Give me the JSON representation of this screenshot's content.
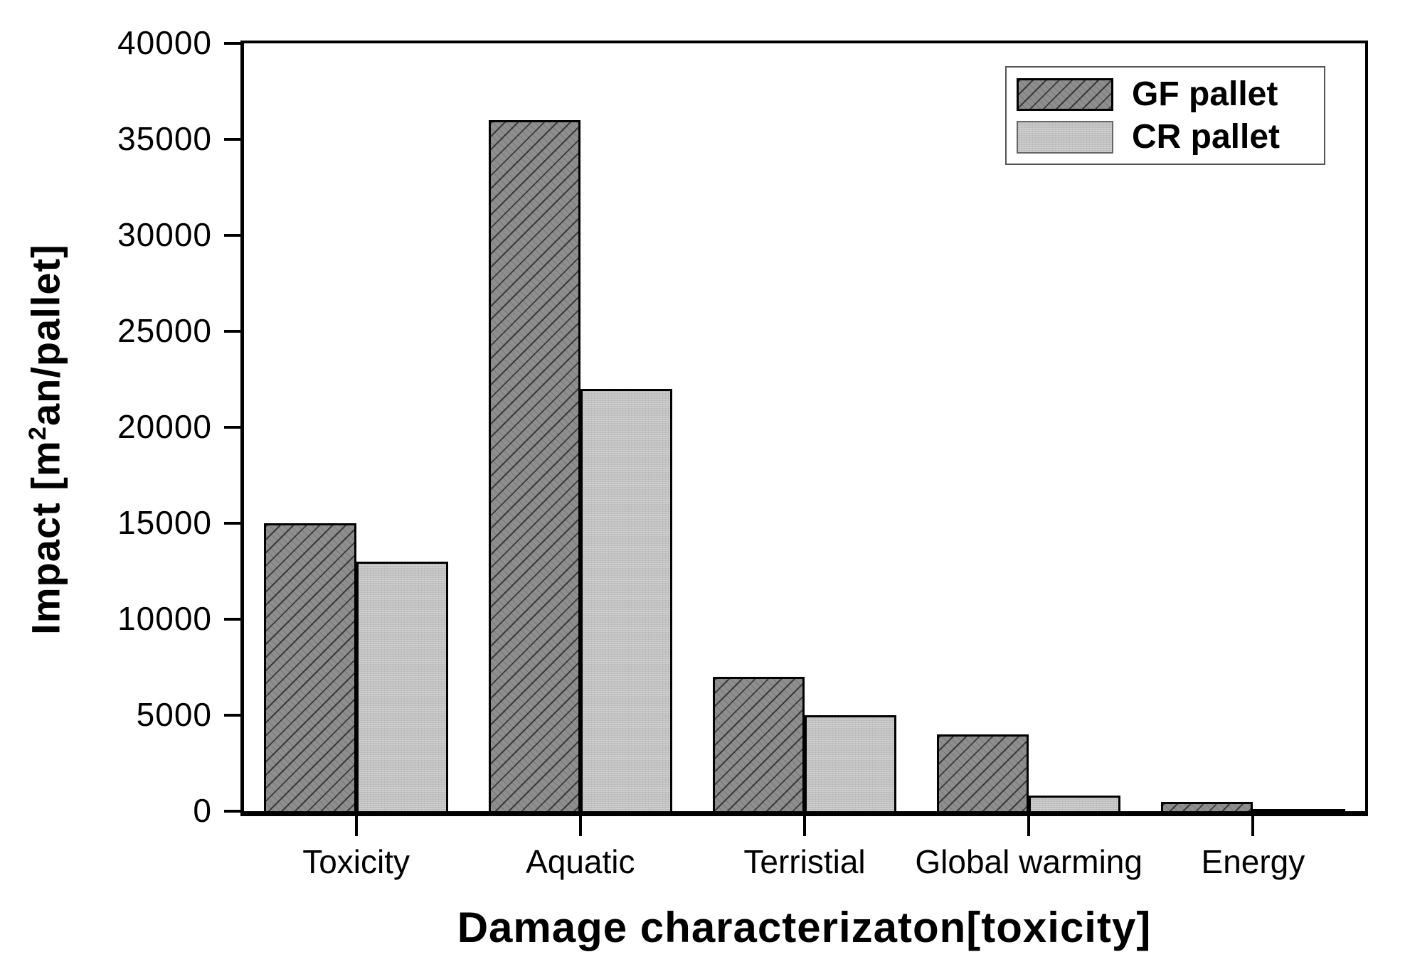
{
  "chart_data": {
    "type": "bar",
    "categories": [
      "Toxicity",
      "Aquatic",
      "Terristial",
      "Global warming",
      "Energy"
    ],
    "series": [
      {
        "name": "GF pallet",
        "values": [
          15000,
          36000,
          7000,
          4000,
          500
        ]
      },
      {
        "name": "CR pallet",
        "values": [
          13000,
          22000,
          5000,
          800,
          100
        ]
      }
    ],
    "xlabel": "Damage characterizaton[toxicity]",
    "ylabel": "Impact [m²an/pallet]",
    "ylabel_parts": {
      "pre": "Impact [m",
      "sup": "2",
      "post": "an/pallet]"
    },
    "ylim": [
      0,
      40000
    ],
    "ytick_step": 5000,
    "ytick_labels": [
      "0",
      "5000",
      "10000",
      "15000",
      "20000",
      "25000",
      "30000",
      "35000",
      "40000"
    ],
    "grid": false,
    "legend_position": "top-right"
  },
  "styles": {
    "gf_fill": "#8e8e8e",
    "cr_fill": "#c0c0c0",
    "hatch_color": "#1a1a1a",
    "axis_color": "#000000",
    "legend_border": "#555555",
    "background": "#ffffff"
  }
}
